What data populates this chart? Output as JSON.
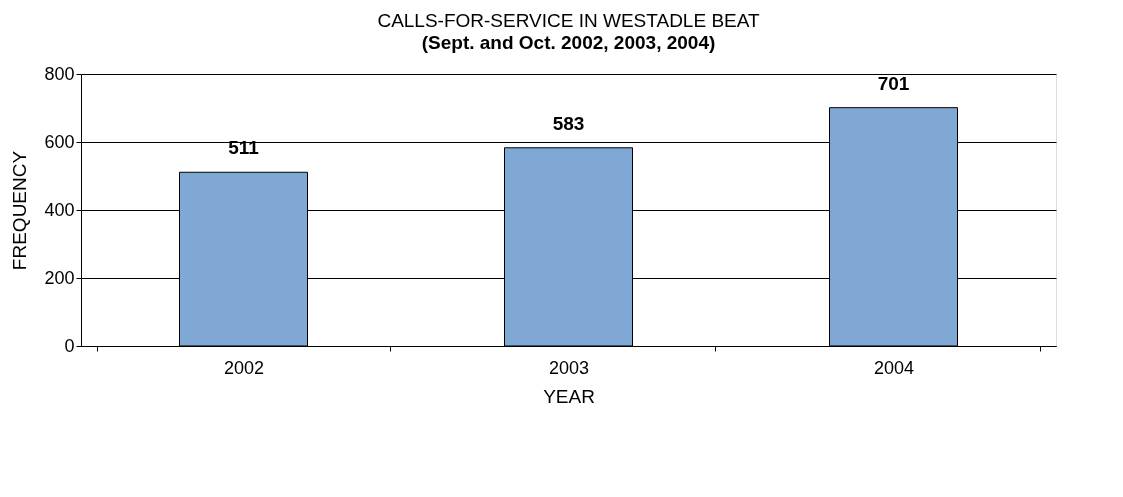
{
  "chart_data": {
    "type": "bar",
    "title": "CALLS-FOR-SERVICE IN WESTADLE BEAT",
    "subtitle": "(Sept. and Oct. 2002, 2003, 2004)",
    "categories": [
      "2002",
      "2003",
      "2004"
    ],
    "values": [
      511,
      583,
      701
    ],
    "color": "#7fa8d4",
    "xlabel": "YEAR",
    "ylabel": "FREQUENCY",
    "ylim": [
      0,
      800
    ],
    "yticks": [
      0,
      200,
      400,
      600,
      800
    ],
    "grid": "y",
    "data_labels": true
  }
}
